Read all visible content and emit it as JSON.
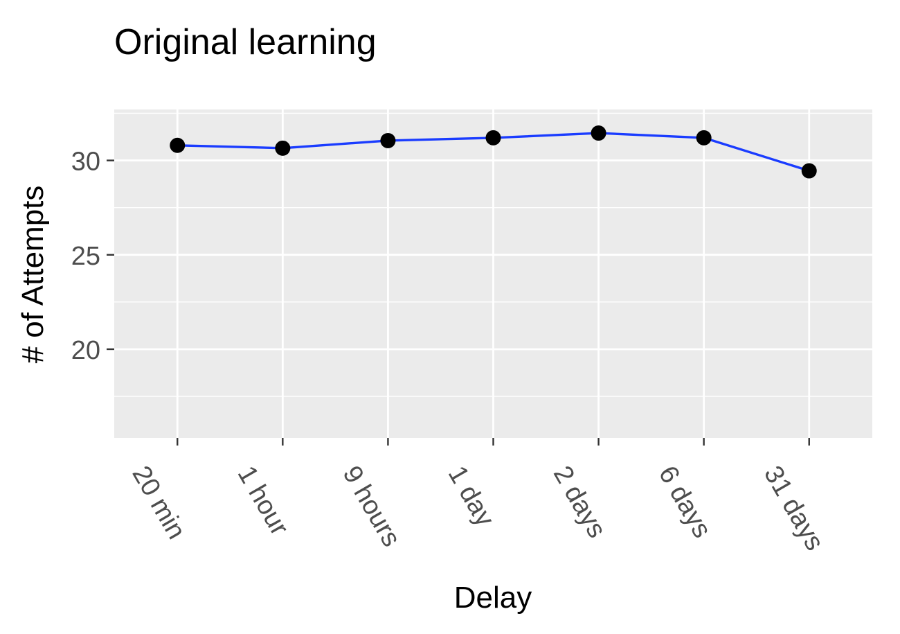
{
  "chart_data": {
    "type": "line",
    "title": "Original learning",
    "xlabel": "Delay",
    "ylabel": "# of Attempts",
    "categories": [
      "20 min",
      "1 hour",
      "9 hours",
      "1 day",
      "2 days",
      "6 days",
      "31 days"
    ],
    "series": [
      {
        "values": [
          30.8,
          30.65,
          31.05,
          31.2,
          31.45,
          31.2,
          29.45
        ],
        "line_color": "#1a3cff",
        "point_color": "#000000"
      }
    ],
    "ylim": [
      15.3,
      32.7
    ],
    "yticks": [
      20,
      25,
      30
    ],
    "grid": true,
    "legend": "none",
    "panel_color": "#ebebeb",
    "grid_color": "#ffffff",
    "x_tick_rotation_deg": 60
  }
}
